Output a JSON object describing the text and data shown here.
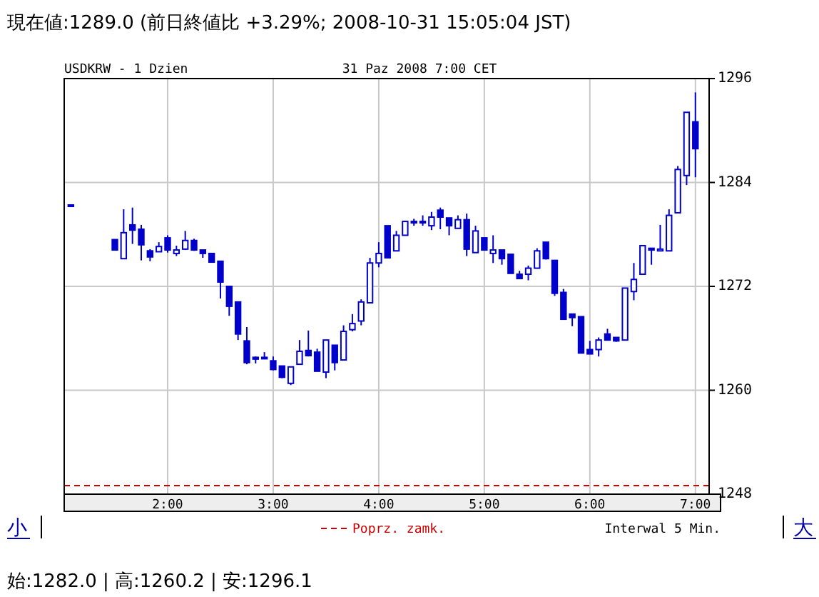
{
  "chart_data": {
    "type": "candlestick",
    "title": "現在値:1289.0 (前日終値比 +3.29%; 2008-10-31 15:05:04 JST)",
    "subtitle": "USDKRW - 1 Dzien",
    "annotations": [
      "31 Paz 2008 7:00 CET",
      "Interwal 5 Min.",
      "小",
      "大",
      "始:1282.0 | 高:1260.2 | 安:1296.1"
    ],
    "color": "#0000cc",
    "x": [
      1.0833,
      1.5,
      1.5833,
      1.6667,
      1.75,
      1.8333,
      1.9167,
      2.0,
      2.0833,
      2.1667,
      2.25,
      2.3333,
      2.4167,
      2.5,
      2.5833,
      2.6667,
      2.75,
      2.8333,
      2.9167,
      3.0,
      3.0833,
      3.1667,
      3.25,
      3.3333,
      3.4167,
      3.5,
      3.5833,
      3.6667,
      3.75,
      3.8333,
      3.9167,
      4.0,
      4.0833,
      4.1667,
      4.25,
      4.3333,
      4.4167,
      4.5,
      4.5833,
      4.6667,
      4.75,
      4.8333,
      4.9167,
      5.0,
      5.0833,
      5.1667,
      5.25,
      5.3333,
      5.4167,
      5.5,
      5.5833,
      5.6667,
      5.75,
      5.8333,
      5.9167,
      6.0,
      6.0833,
      6.1667,
      6.25,
      6.3333,
      6.4167,
      6.5,
      6.5833,
      6.6667,
      6.75,
      6.8333,
      6.9167,
      7.0
    ],
    "ohlc": [
      [
        1281.4,
        1281.4,
        1281.4,
        1281.4
      ],
      [
        1277.4,
        1277.4,
        1276.2,
        1276.2
      ],
      [
        1275.2,
        1280.9,
        1275.2,
        1278.2
      ],
      [
        1279.1,
        1281.1,
        1276.9,
        1278.5
      ],
      [
        1278.6,
        1279.1,
        1275.0,
        1276.8
      ],
      [
        1276.1,
        1276.3,
        1274.9,
        1275.4
      ],
      [
        1276.0,
        1277.1,
        1276.0,
        1276.6
      ],
      [
        1277.6,
        1277.9,
        1275.9,
        1276.2
      ],
      [
        1275.8,
        1276.7,
        1275.5,
        1276.2
      ],
      [
        1276.3,
        1278.4,
        1276.2,
        1277.3
      ],
      [
        1277.3,
        1277.5,
        1276.1,
        1276.2
      ],
      [
        1276.2,
        1276.2,
        1275.3,
        1275.8
      ],
      [
        1275.8,
        1275.8,
        1274.8,
        1274.8
      ],
      [
        1274.9,
        1274.9,
        1270.6,
        1272.5
      ],
      [
        1272.0,
        1272.0,
        1268.6,
        1269.7
      ],
      [
        1270.2,
        1270.2,
        1265.8,
        1266.5
      ],
      [
        1265.7,
        1267.3,
        1263.0,
        1263.2
      ],
      [
        1263.8,
        1263.9,
        1263.1,
        1263.6
      ],
      [
        1263.7,
        1264.4,
        1263.7,
        1263.8
      ],
      [
        1263.4,
        1263.9,
        1262.3,
        1262.4
      ],
      [
        1262.8,
        1262.8,
        1261.4,
        1261.5
      ],
      [
        1260.8,
        1262.7,
        1260.6,
        1262.7
      ],
      [
        1263.0,
        1265.8,
        1263.0,
        1264.5
      ],
      [
        1264.6,
        1266.9,
        1263.9,
        1264.0
      ],
      [
        1264.4,
        1264.8,
        1262.2,
        1262.2
      ],
      [
        1262.1,
        1265.8,
        1261.4,
        1265.8
      ],
      [
        1265.2,
        1265.2,
        1262.3,
        1263.2
      ],
      [
        1263.5,
        1267.5,
        1263.5,
        1266.8
      ],
      [
        1267.0,
        1268.8,
        1266.8,
        1267.7
      ],
      [
        1268.0,
        1270.5,
        1267.5,
        1270.2
      ],
      [
        1270.1,
        1275.3,
        1270.1,
        1274.7
      ],
      [
        1274.7,
        1277.1,
        1274.2,
        1275.8
      ],
      [
        1279.0,
        1279.0,
        1275.3,
        1275.3
      ],
      [
        1276.1,
        1278.4,
        1276.1,
        1277.9
      ],
      [
        1277.9,
        1279.5,
        1277.9,
        1279.5
      ],
      [
        1279.5,
        1279.8,
        1279.0,
        1279.4
      ],
      [
        1279.5,
        1280.2,
        1279.0,
        1279.4
      ],
      [
        1279.0,
        1280.6,
        1278.5,
        1280.0
      ],
      [
        1280.8,
        1281.1,
        1278.6,
        1280.0
      ],
      [
        1279.9,
        1279.9,
        1277.9,
        1279.0
      ],
      [
        1278.7,
        1280.2,
        1278.7,
        1279.7
      ],
      [
        1279.7,
        1280.4,
        1275.5,
        1276.3
      ],
      [
        1275.9,
        1279.0,
        1275.9,
        1278.4
      ],
      [
        1277.6,
        1277.6,
        1276.2,
        1276.2
      ],
      [
        1275.8,
        1277.9,
        1274.7,
        1276.2
      ],
      [
        1276.2,
        1276.2,
        1274.5,
        1275.2
      ],
      [
        1275.7,
        1275.7,
        1273.5,
        1273.5
      ],
      [
        1273.4,
        1273.8,
        1272.9,
        1272.9
      ],
      [
        1273.4,
        1274.4,
        1272.7,
        1274.1
      ],
      [
        1274.1,
        1276.4,
        1274.1,
        1276.1
      ],
      [
        1277.1,
        1277.1,
        1275.1,
        1275.2
      ],
      [
        1275.0,
        1275.0,
        1270.9,
        1271.2
      ],
      [
        1271.3,
        1271.7,
        1268.2,
        1268.2
      ],
      [
        1268.8,
        1268.8,
        1267.4,
        1268.4
      ],
      [
        1268.5,
        1268.5,
        1264.3,
        1264.3
      ],
      [
        1264.7,
        1265.7,
        1264.2,
        1264.2
      ],
      [
        1264.7,
        1266.1,
        1263.9,
        1265.8
      ],
      [
        1266.5,
        1267.1,
        1265.8,
        1265.8
      ],
      [
        1266.1,
        1266.1,
        1265.6,
        1265.7
      ],
      [
        1265.8,
        1271.8,
        1265.8,
        1271.8
      ],
      [
        1271.4,
        1274.7,
        1270.4,
        1272.8
      ],
      [
        1273.4,
        1276.7,
        1273.4,
        1276.7
      ],
      [
        1276.4,
        1276.4,
        1274.5,
        1276.2
      ],
      [
        1276.1,
        1279.1,
        1276.1,
        1276.3
      ],
      [
        1276.1,
        1280.9,
        1276.1,
        1280.2
      ],
      [
        1280.5,
        1285.9,
        1280.5,
        1285.5
      ],
      [
        1284.8,
        1292.1,
        1283.7,
        1292.1
      ],
      [
        1291.0,
        1294.4,
        1284.6,
        1287.9
      ]
    ],
    "xlim": [
      1.02,
      7.13
    ],
    "xticks": [
      {
        "value": 2,
        "label": "2:00"
      },
      {
        "value": 3,
        "label": "3:00"
      },
      {
        "value": 4,
        "label": "4:00"
      },
      {
        "value": 5,
        "label": "5:00"
      },
      {
        "value": 6,
        "label": "6:00"
      },
      {
        "value": 7,
        "label": "7:00"
      }
    ],
    "ylim": [
      1248,
      1296
    ],
    "yticks": [
      1248,
      1260,
      1272,
      1284,
      1296
    ],
    "grid": true,
    "ref_lines": [
      {
        "axis": "y",
        "value": 1249.0,
        "label": "Poprz. zamk.",
        "color": "#cc0000",
        "line_style": "dashed"
      }
    ]
  }
}
